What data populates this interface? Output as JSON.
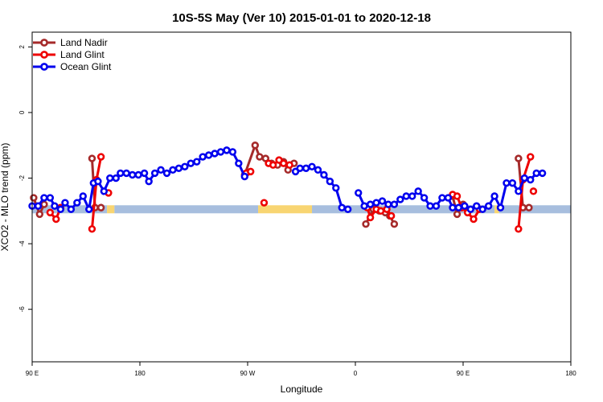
{
  "chart_data": {
    "type": "line",
    "title": "10S-5S May (Ver 10)   2015-01-01 to 2020-12-18",
    "xlabel": "Longitude",
    "ylabel": "XCO2 - MLO trend (ppm)",
    "xlim": [
      90,
      450
    ],
    "ylim": [
      -7.6,
      2.45
    ],
    "xticks": [
      {
        "value": 90,
        "label": "90 E"
      },
      {
        "value": 162,
        "label": "180"
      },
      {
        "value": 234,
        "label": "90 W"
      },
      {
        "value": 306,
        "label": "0"
      },
      {
        "value": 378,
        "label": "90 E"
      },
      {
        "value": 450,
        "label": "180"
      }
    ],
    "yticks": [
      {
        "value": 2,
        "label": "2"
      },
      {
        "value": 0,
        "label": "0"
      },
      {
        "value": -2,
        "label": "-2"
      },
      {
        "value": -4,
        "label": "-4"
      },
      {
        "value": -6,
        "label": "-6"
      }
    ],
    "legend_position": "top-left",
    "land_band": {
      "y": -2.95,
      "colors": {
        "land": "#f8d572",
        "ocean": "#a7bede"
      },
      "segments": [
        {
          "x0": 90,
          "x1": 140,
          "type": "ocean"
        },
        {
          "x0": 140,
          "x1": 145,
          "type": "land"
        },
        {
          "x0": 145,
          "x1": 241,
          "type": "ocean"
        },
        {
          "x0": 241,
          "x1": 277,
          "type": "land"
        },
        {
          "x0": 277,
          "x1": 399,
          "type": "ocean"
        },
        {
          "x0": 399,
          "x1": 402,
          "type": "land"
        },
        {
          "x0": 402,
          "x1": 450,
          "type": "ocean"
        }
      ]
    },
    "series": [
      {
        "name": "Land Nadir",
        "color": "#a52a2a",
        "segments": [
          [
            [
              91,
              -2.6
            ],
            [
              95,
              -3.1
            ],
            [
              98,
              -2.8
            ]
          ],
          [
            [
              130,
              -1.4
            ],
            [
              132,
              -2.9
            ],
            [
              136,
              -2.9
            ]
          ],
          [
            [
              232,
              -1.9
            ],
            [
              239,
              -1.0
            ],
            [
              242,
              -1.35
            ],
            [
              246,
              -1.4
            ],
            [
              250,
              -1.55
            ],
            [
              254,
              -1.6
            ],
            [
              258,
              -1.5
            ],
            [
              261,
              -1.75
            ],
            [
              265,
              -1.55
            ]
          ],
          [
            [
              313,
              -3.4
            ],
            [
              318,
              -2.95
            ],
            [
              322,
              -3.0
            ],
            [
              326,
              -3.05
            ],
            [
              329,
              -3.15
            ],
            [
              332,
              -3.4
            ]
          ],
          [
            [
              371,
              -2.55
            ],
            [
              374,
              -3.1
            ],
            [
              378,
              -2.8
            ]
          ],
          [
            [
              415,
              -1.4
            ],
            [
              418,
              -2.9
            ],
            [
              422,
              -2.9
            ]
          ]
        ]
      },
      {
        "name": "Land Glint",
        "color": "#ee0000",
        "segments": [
          [
            [
              102,
              -3.05
            ],
            [
              106,
              -3.25
            ],
            [
              109,
              -2.9
            ]
          ],
          [
            [
              130,
              -3.55
            ],
            [
              133,
              -2.05
            ],
            [
              136,
              -1.35
            ]
          ],
          [
            [
              141,
              -2.45
            ]
          ],
          [
            [
              233,
              -1.85
            ],
            [
              236,
              -1.8
            ]
          ],
          [
            [
              245,
              -2.75
            ]
          ],
          [
            [
              248,
              -1.55
            ],
            [
              251,
              -1.6
            ],
            [
              255,
              -1.45
            ],
            [
              258,
              -1.55
            ],
            [
              262,
              -1.6
            ]
          ],
          [
            [
              314,
              -2.9
            ],
            [
              316,
              -3.2
            ],
            [
              320,
              -2.95
            ],
            [
              323,
              -3.0
            ],
            [
              327,
              -2.95
            ],
            [
              330,
              -3.15
            ]
          ],
          [
            [
              371,
              -2.5
            ],
            [
              374,
              -2.55
            ],
            [
              377,
              -2.9
            ],
            [
              381,
              -3.05
            ],
            [
              385,
              -3.25
            ],
            [
              389,
              -2.95
            ]
          ],
          [
            [
              415,
              -3.55
            ],
            [
              418,
              -2.05
            ],
            [
              423,
              -1.35
            ]
          ],
          [
            [
              425,
              -2.4
            ]
          ]
        ]
      },
      {
        "name": "Ocean Glint",
        "color": "#0000ee",
        "segments": [
          [
            [
              90,
              -2.85
            ],
            [
              94,
              -2.85
            ],
            [
              98,
              -2.6
            ],
            [
              102,
              -2.6
            ],
            [
              105,
              -2.85
            ],
            [
              109,
              -2.95
            ],
            [
              112,
              -2.75
            ],
            [
              116,
              -2.95
            ],
            [
              120,
              -2.75
            ],
            [
              124,
              -2.55
            ],
            [
              128,
              -2.95
            ],
            [
              131,
              -2.15
            ],
            [
              134,
              -2.1
            ],
            [
              138,
              -2.4
            ],
            [
              142,
              -2.0
            ],
            [
              146,
              -2.0
            ],
            [
              149,
              -1.85
            ],
            [
              153,
              -1.85
            ],
            [
              157,
              -1.9
            ],
            [
              161,
              -1.9
            ],
            [
              165,
              -1.85
            ],
            [
              168,
              -2.1
            ],
            [
              172,
              -1.85
            ],
            [
              176,
              -1.75
            ],
            [
              180,
              -1.85
            ],
            [
              184,
              -1.75
            ],
            [
              188,
              -1.7
            ],
            [
              192,
              -1.65
            ],
            [
              196,
              -1.55
            ],
            [
              200,
              -1.5
            ],
            [
              204,
              -1.35
            ],
            [
              208,
              -1.3
            ],
            [
              212,
              -1.25
            ],
            [
              216,
              -1.2
            ],
            [
              220,
              -1.15
            ],
            [
              224,
              -1.2
            ],
            [
              228,
              -1.55
            ],
            [
              232,
              -1.95
            ]
          ],
          [
            [
              266,
              -1.8
            ],
            [
              269,
              -1.7
            ],
            [
              273,
              -1.7
            ],
            [
              277,
              -1.65
            ],
            [
              281,
              -1.75
            ],
            [
              285,
              -1.9
            ],
            [
              289,
              -2.1
            ],
            [
              293,
              -2.3
            ],
            [
              297,
              -2.9
            ],
            [
              301,
              -2.95
            ]
          ],
          [
            [
              308,
              -2.45
            ],
            [
              312,
              -2.85
            ],
            [
              316,
              -2.8
            ],
            [
              320,
              -2.75
            ],
            [
              324,
              -2.7
            ],
            [
              328,
              -2.8
            ],
            [
              332,
              -2.8
            ],
            [
              336,
              -2.65
            ],
            [
              340,
              -2.55
            ],
            [
              344,
              -2.55
            ],
            [
              348,
              -2.4
            ],
            [
              352,
              -2.6
            ],
            [
              356,
              -2.85
            ],
            [
              360,
              -2.85
            ],
            [
              364,
              -2.6
            ],
            [
              368,
              -2.6
            ],
            [
              371,
              -2.9
            ],
            [
              375,
              -2.9
            ],
            [
              379,
              -2.85
            ],
            [
              383,
              -2.95
            ],
            [
              387,
              -2.85
            ],
            [
              391,
              -2.95
            ],
            [
              395,
              -2.85
            ],
            [
              399,
              -2.55
            ],
            [
              403,
              -2.9
            ],
            [
              407,
              -2.15
            ],
            [
              411,
              -2.15
            ],
            [
              415,
              -2.4
            ],
            [
              419,
              -2.0
            ],
            [
              423,
              -2.05
            ],
            [
              427,
              -1.85
            ],
            [
              431,
              -1.85
            ]
          ]
        ]
      }
    ]
  }
}
